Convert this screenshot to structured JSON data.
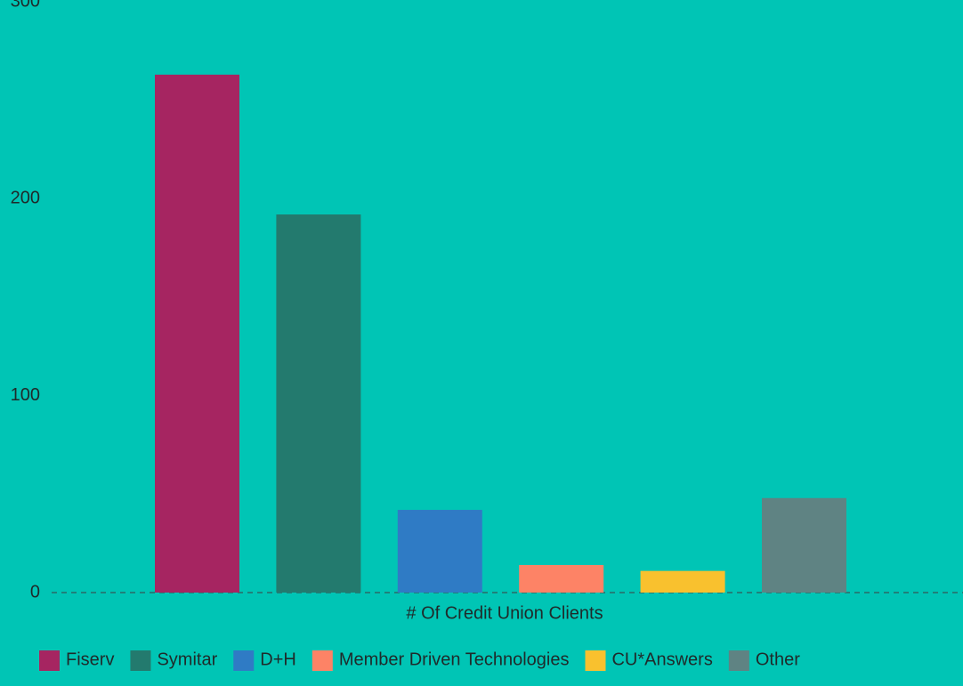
{
  "chart_data": {
    "type": "bar",
    "x_label": "# Of Credit Union Clients",
    "categories": [
      null
    ],
    "series": [
      {
        "name": "Fiserv",
        "color": "#a62561",
        "values": [
          263
        ]
      },
      {
        "name": "Symitar",
        "color": "#237a6e",
        "values": [
          192
        ]
      },
      {
        "name": "D+H",
        "color": "#2f7bc5",
        "values": [
          42
        ]
      },
      {
        "name": "Member Driven Technologies",
        "color": "#fd8366",
        "values": [
          14
        ]
      },
      {
        "name": "CU*Answers",
        "color": "#f9c12e",
        "values": [
          11
        ]
      },
      {
        "name": "Other",
        "color": "#5f8383",
        "values": [
          48
        ]
      }
    ],
    "ylim": [
      0,
      300
    ],
    "yticks": [
      0,
      100,
      200,
      300
    ],
    "grid": false
  }
}
